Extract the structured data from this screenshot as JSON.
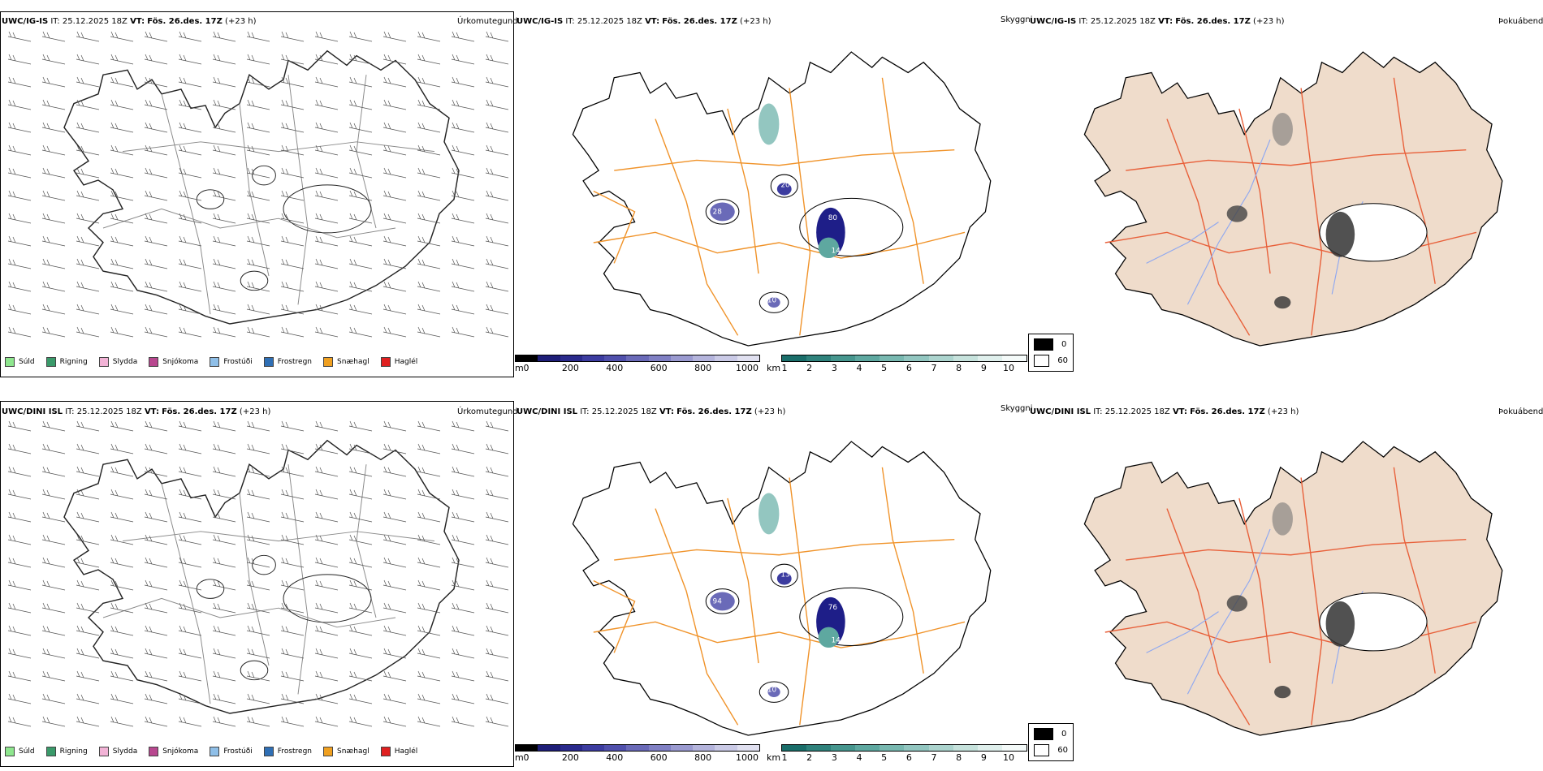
{
  "rows": [
    {
      "model": "UWC/IG-IS",
      "it_label": "IT:",
      "it_value": "25.12.2025 18Z",
      "vt_label": "VT:",
      "vt_value": "Fös. 26.des. 17Z",
      "lead": "(+23 h)",
      "panel_precip_title": "Úrkomutegund",
      "panel_vis_title": "Skyggni",
      "panel_fog_title": "Þokuábendi",
      "vis_labels": [
        "80",
        "14",
        "28",
        "20",
        "10"
      ]
    },
    {
      "model": "UWC/DINI ISL",
      "it_label": "IT:",
      "it_value": "25.12.2025 18Z",
      "vt_label": "VT:",
      "vt_value": "Fös. 26.des. 17Z",
      "lead": "(+23 h)",
      "panel_precip_title": "Úrkomutegund",
      "panel_vis_title": "Skyggni",
      "panel_fog_title": "Þokuábendi",
      "vis_labels": [
        "76",
        "14",
        "94",
        "13",
        "10"
      ]
    }
  ],
  "precip_legend": [
    {
      "label": "Súld",
      "color": "#8ee68e"
    },
    {
      "label": "Rigning",
      "color": "#3a9a6a"
    },
    {
      "label": "Slydda",
      "color": "#f2b3d6"
    },
    {
      "label": "Snjókoma",
      "color": "#b8478f"
    },
    {
      "label": "Frostúði",
      "color": "#8fbfe8"
    },
    {
      "label": "Frostregn",
      "color": "#2f6fb5"
    },
    {
      "label": "Snæhagl",
      "color": "#f0a020"
    },
    {
      "label": "Haglél",
      "color": "#e02020"
    }
  ],
  "ceiling_scale": {
    "unit": "m",
    "ticks": [
      "0",
      "200",
      "400",
      "600",
      "800",
      "1000"
    ],
    "colors": [
      "#000000",
      "#1e1e78",
      "#2a2a8c",
      "#3c3ca0",
      "#5050ac",
      "#6a6ab8",
      "#8080c4",
      "#9a9ad0",
      "#b4b4dc",
      "#cacae6",
      "#e0e0f0"
    ]
  },
  "visibility_scale": {
    "unit": "km",
    "ticks": [
      "1",
      "2",
      "3",
      "4",
      "5",
      "6",
      "7",
      "8",
      "9",
      "10"
    ],
    "colors": [
      "#1a6e6a",
      "#2f827c",
      "#46968e",
      "#5ea8a0",
      "#78b8b0",
      "#92c6c0",
      "#acd4ce",
      "#c6e2dc",
      "#dfefec",
      "#f4faf9"
    ]
  },
  "cloud_legend": [
    {
      "label": "0",
      "color": "#000000"
    },
    {
      "label": "60",
      "color": "#ffffff"
    }
  ],
  "colors": {
    "road": "#f0932a",
    "fog_land": "#efdccb",
    "fog_road": "#e8603a",
    "fog_river": "#8fa8f0",
    "coast": "#000000"
  }
}
